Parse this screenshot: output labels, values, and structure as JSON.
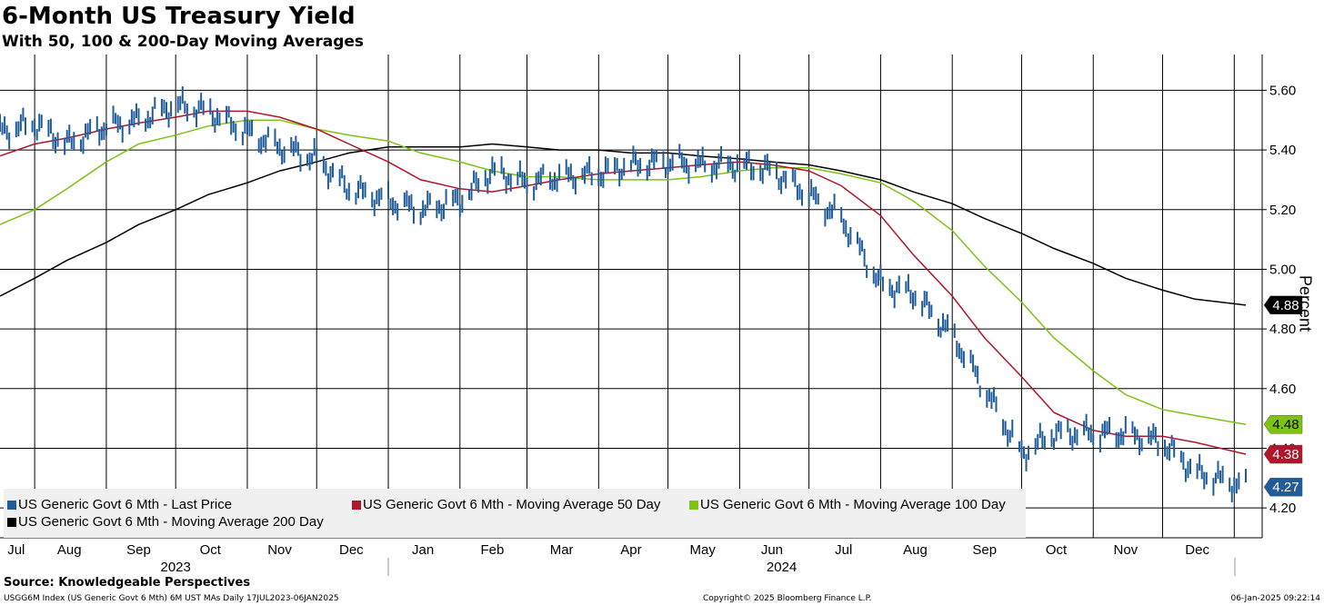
{
  "header": {
    "title": "6-Month US Treasury Yield",
    "subtitle": "With 50, 100 & 200-Day Moving Averages"
  },
  "footer": {
    "source": "Source: Knowledgeable Perspectives",
    "index_info": "USGG6M Index (US Generic Govt 6 Mth) 6M UST MAs  Daily 17JUL2023-06JAN2025",
    "copyright": "Copyright© 2025 Bloomberg Finance L.P.",
    "timestamp": "06-Jan-2025 09:22:14"
  },
  "legend": {
    "last_price": "US Generic Govt 6 Mth - Last Price",
    "ma50": "US Generic Govt 6 Mth - Moving Average 50 Day",
    "ma100": "US Generic Govt 6 Mth - Moving Average 100 Day",
    "ma200": "US Generic Govt 6 Mth - Moving Average 200 Day"
  },
  "colors": {
    "last_price": "#1f5c99",
    "ma50": "#b0152a",
    "ma100": "#7dc314",
    "ma200": "#000000"
  },
  "chart_data": {
    "type": "line",
    "ylabel": "Percent",
    "ylim": [
      4.1,
      5.72
    ],
    "yticks": [
      "5.60",
      "5.40",
      "5.20",
      "5.00",
      "4.80",
      "4.60",
      "4.40",
      "4.20"
    ],
    "grid": true,
    "legend_position": "bottom-left",
    "months": [
      "Jul",
      "Aug",
      "Sep",
      "Oct",
      "Nov",
      "Dec",
      "Jan",
      "Feb",
      "Mar",
      "Apr",
      "May",
      "Jun",
      "Jul",
      "Aug",
      "Sep",
      "Oct",
      "Nov",
      "Dec"
    ],
    "years": [
      "2023",
      "2024"
    ],
    "x": [
      "2023-07-17",
      "2023-08-01",
      "2023-08-15",
      "2023-09-01",
      "2023-09-15",
      "2023-10-01",
      "2023-10-15",
      "2023-11-01",
      "2023-11-15",
      "2023-12-01",
      "2023-12-15",
      "2024-01-01",
      "2024-01-15",
      "2024-02-01",
      "2024-02-15",
      "2024-03-01",
      "2024-03-15",
      "2024-04-01",
      "2024-04-15",
      "2024-05-01",
      "2024-05-15",
      "2024-06-01",
      "2024-06-15",
      "2024-07-01",
      "2024-07-15",
      "2024-08-01",
      "2024-08-15",
      "2024-09-01",
      "2024-09-15",
      "2024-10-01",
      "2024-10-15",
      "2024-11-01",
      "2024-11-15",
      "2024-12-01",
      "2024-12-15",
      "2025-01-06"
    ],
    "series": [
      {
        "name": "US Generic Govt 6 Mth - Last Price",
        "style": "bars",
        "values": [
          5.46,
          5.49,
          5.42,
          5.48,
          5.5,
          5.55,
          5.53,
          5.46,
          5.41,
          5.37,
          5.27,
          5.23,
          5.2,
          5.23,
          5.33,
          5.29,
          5.31,
          5.32,
          5.35,
          5.36,
          5.35,
          5.35,
          5.33,
          5.25,
          5.17,
          4.95,
          4.92,
          4.78,
          4.6,
          4.38,
          4.45,
          4.45,
          4.45,
          4.42,
          4.32,
          4.27
        ]
      },
      {
        "name": "US Generic Govt 6 Mth - Moving Average 50 Day",
        "style": "line",
        "values": [
          5.38,
          5.42,
          5.44,
          5.47,
          5.49,
          5.51,
          5.53,
          5.53,
          5.51,
          5.47,
          5.42,
          5.36,
          5.3,
          5.27,
          5.26,
          5.28,
          5.3,
          5.32,
          5.33,
          5.34,
          5.35,
          5.36,
          5.35,
          5.33,
          5.28,
          5.18,
          5.05,
          4.91,
          4.77,
          4.64,
          4.52,
          4.46,
          4.44,
          4.44,
          4.42,
          4.38
        ]
      },
      {
        "name": "US Generic Govt 6 Mth - Moving Average 100 Day",
        "style": "line",
        "values": [
          5.15,
          5.2,
          5.27,
          5.36,
          5.42,
          5.45,
          5.48,
          5.5,
          5.5,
          5.47,
          5.45,
          5.43,
          5.39,
          5.36,
          5.33,
          5.31,
          5.31,
          5.3,
          5.3,
          5.3,
          5.31,
          5.33,
          5.34,
          5.34,
          5.32,
          5.29,
          5.23,
          5.13,
          5.01,
          4.89,
          4.77,
          4.66,
          4.58,
          4.53,
          4.51,
          4.48
        ]
      },
      {
        "name": "US Generic Govt 6 Mth - Moving Average 200 Day",
        "style": "line",
        "values": [
          4.91,
          4.97,
          5.03,
          5.09,
          5.15,
          5.2,
          5.25,
          5.29,
          5.33,
          5.36,
          5.39,
          5.41,
          5.41,
          5.41,
          5.42,
          5.41,
          5.4,
          5.4,
          5.39,
          5.39,
          5.38,
          5.37,
          5.36,
          5.35,
          5.33,
          5.3,
          5.26,
          5.22,
          5.17,
          5.12,
          5.07,
          5.02,
          4.97,
          4.93,
          4.9,
          4.88
        ]
      }
    ],
    "last_value_labels": [
      {
        "series": "US Generic Govt 6 Mth - Moving Average 200 Day",
        "label": "4.88",
        "bg": "#000000",
        "fg": "#ffffff"
      },
      {
        "series": "US Generic Govt 6 Mth - Moving Average 100 Day",
        "label": "4.48",
        "bg": "#7dc314",
        "fg": "#000000"
      },
      {
        "series": "US Generic Govt 6 Mth - Moving Average 50 Day",
        "label": "4.38",
        "bg": "#b0152a",
        "fg": "#ffffff"
      },
      {
        "series": "US Generic Govt 6 Mth - Last Price",
        "label": "4.27",
        "bg": "#1f5c99",
        "fg": "#ffffff"
      }
    ]
  }
}
